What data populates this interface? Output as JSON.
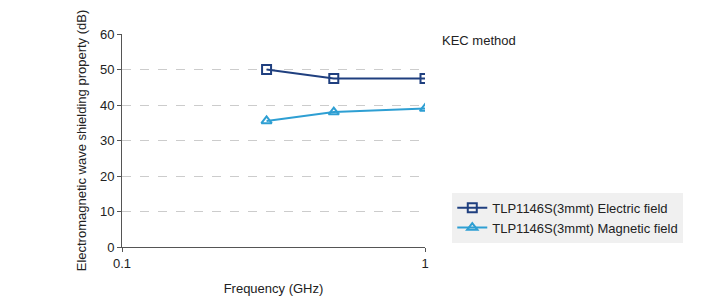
{
  "chart_data": {
    "type": "line",
    "x_label": "Frequency (GHz)",
    "y_label": "Electromagnetic wave shielding property (dB)",
    "annotations": [
      "KEC method"
    ],
    "log": "x",
    "grid": true,
    "legend": "right",
    "xlim": [
      0.1,
      1
    ],
    "xticks": [
      0.1,
      1
    ],
    "ylim": [
      0,
      60
    ],
    "yticks": [
      0,
      10,
      20,
      30,
      40,
      50,
      60
    ],
    "x": [
      0.3,
      0.5,
      1
    ],
    "series": [
      {
        "name": "TLP1146S(3mmt) Electric field",
        "color": "#1f3f7f",
        "marker": "square-open",
        "values": [
          50,
          47.5,
          47.5
        ]
      },
      {
        "name": "TLP1146S(3mmt) Magnetic field",
        "color": "#2e9fd3",
        "marker": "triangle-up-open",
        "values": [
          35.5,
          38,
          39
        ]
      }
    ]
  }
}
